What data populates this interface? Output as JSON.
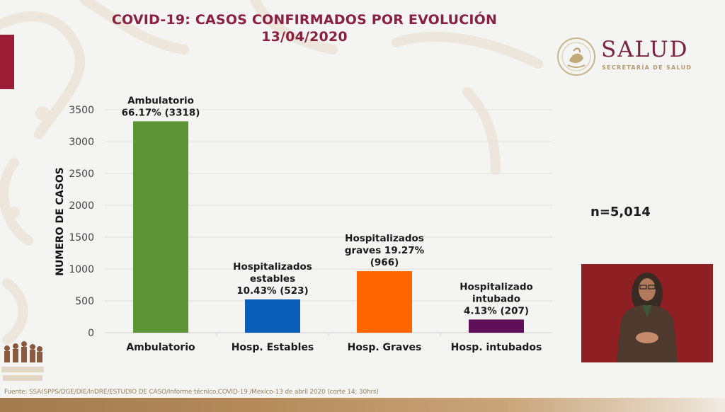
{
  "header": {
    "title_line1": "COVID-19: CASOS CONFIRMADOS POR EVOLUCIÓN",
    "title_line2": "13/04/2020"
  },
  "logo": {
    "name": "SALUD",
    "subtitle": "SECRETARÍA DE SALUD",
    "seal_icon": "mexico-coat-of-arms-seal-icon"
  },
  "colors": {
    "title": "#8a2040",
    "accent_tab": "#9b1d35",
    "logo_text": "#7b2343",
    "logo_sub": "#b59a6e",
    "bar_ambulatorio": "#5c9436",
    "bar_estables": "#0b5fb8",
    "bar_graves": "#ff6600",
    "bar_intubados": "#5f1058",
    "video_bg": "#8e1f22"
  },
  "summary": {
    "n_label": "n=5,014"
  },
  "interpreter_video": {
    "icon": "sign-language-interpreter-video"
  },
  "footer": {
    "source": "Fuente: SSA(SPPS/DGE/DIE/InDRE/ESTUDIO DE CASO/Informe técnico.COVID-19 /Mexico-13 de abril 2020 (corte 14: 30hrs)"
  },
  "chart_data": {
    "type": "bar",
    "title": "COVID-19: CASOS CONFIRMADOS POR EVOLUCIÓN 13/04/2020",
    "xlabel": "",
    "ylabel": "NUMERO DE CASOS",
    "ylim": [
      0,
      3500
    ],
    "yticks": [
      0,
      500,
      1000,
      1500,
      2000,
      2500,
      3000,
      3500
    ],
    "grid": true,
    "legend": "none",
    "categories": [
      "Ambulatorio",
      "Hosp. Estables",
      "Hosp. Graves",
      "Hosp. intubados"
    ],
    "values": [
      3318,
      523,
      966,
      207
    ],
    "percentages": [
      66.17,
      10.43,
      19.27,
      4.13
    ],
    "colors": [
      "#5c9436",
      "#0b5fb8",
      "#ff6600",
      "#5f1058"
    ],
    "data_labels": [
      [
        "Ambulatorio",
        "66.17% (3318)"
      ],
      [
        "Hospitalizados",
        "estables",
        "10.43% (523)"
      ],
      [
        "Hospitalizados",
        "graves 19.27%",
        "(966)"
      ],
      [
        "Hospitalizado",
        "intubado",
        "4.13% (207)"
      ]
    ],
    "total": 5014
  }
}
